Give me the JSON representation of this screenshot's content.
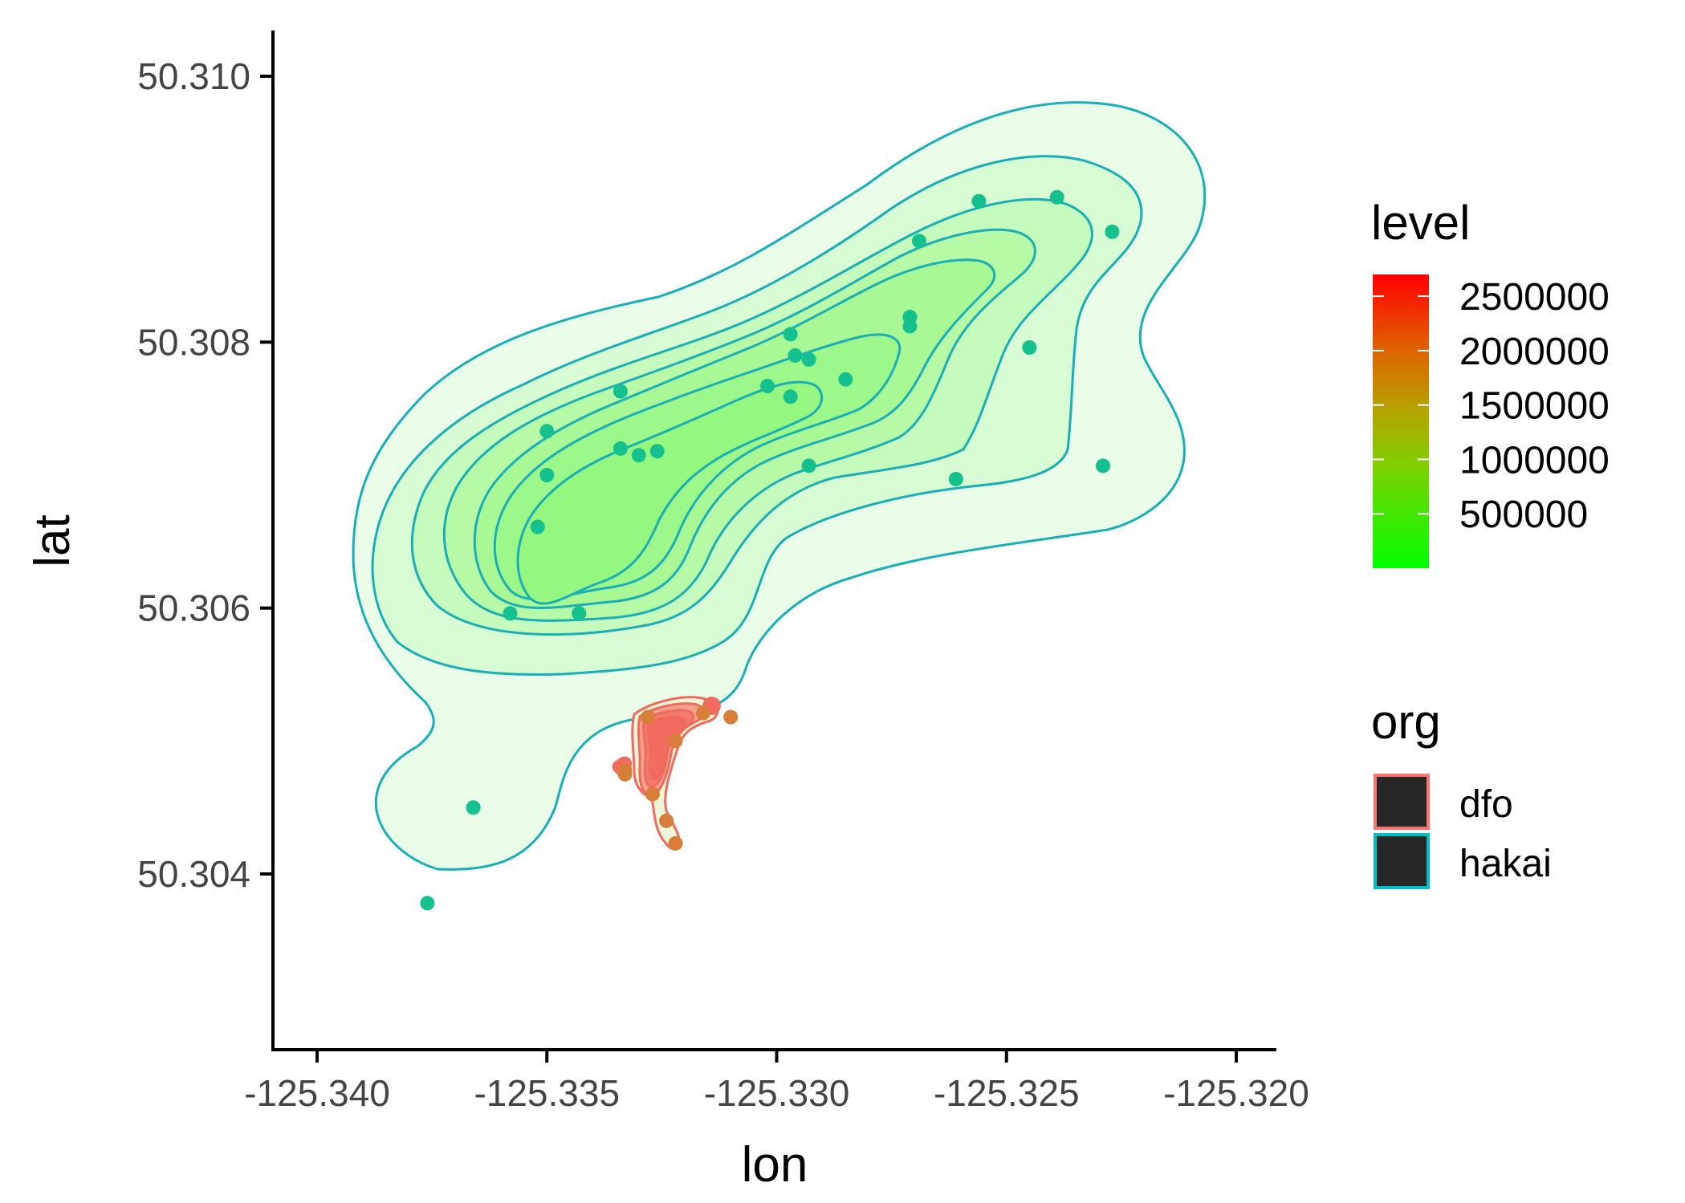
{
  "chart_data": {
    "type": "scatter",
    "subtype": "2d-density-contour",
    "title": "",
    "xlabel": "lon",
    "ylabel": "lat",
    "xlim": [
      -125.341,
      -125.3191
    ],
    "ylim": [
      50.3027,
      50.31035
    ],
    "x_ticks": [
      -125.34,
      -125.335,
      -125.33,
      -125.325,
      -125.32
    ],
    "x_tick_labels": [
      "-125.340",
      "-125.335",
      "-125.330",
      "-125.325",
      "-125.320"
    ],
    "y_ticks": [
      50.304,
      50.306,
      50.308,
      50.31
    ],
    "y_tick_labels": [
      "50.304",
      "50.306",
      "50.308",
      "50.310"
    ],
    "grid": false,
    "legend_position": "right",
    "fill_scale": {
      "title": "level",
      "low_color": "#00ff00",
      "high_color": "#ff0000",
      "breaks": [
        2500000,
        2000000,
        1500000,
        1000000,
        500000
      ],
      "break_labels": [
        "2500000",
        "2000000",
        "1500000",
        "1000000",
        "500000"
      ],
      "range": [
        0,
        2700000
      ]
    },
    "color_legend": {
      "title": "org",
      "entries": [
        {
          "label": "dfo",
          "color": "#F8766D"
        },
        {
          "label": "hakai",
          "color": "#00BFC4"
        }
      ]
    },
    "series": [
      {
        "name": "hakai",
        "line_color": "#19AFB5",
        "point_color": "#14C08E",
        "contour_fill_colors": [
          "#e9fde9",
          "#d8fcd4",
          "#c6fbbe",
          "#b6faa8",
          "#a8f996",
          "#9cf88a",
          "#94f780"
        ],
        "points": [
          [
            -125.3376,
            50.30378
          ],
          [
            -125.3366,
            50.3045
          ],
          [
            -125.3358,
            50.30596
          ],
          [
            -125.3343,
            50.30596
          ],
          [
            -125.3352,
            50.30661
          ],
          [
            -125.335,
            50.307
          ],
          [
            -125.335,
            50.30733
          ],
          [
            -125.3334,
            50.3072
          ],
          [
            -125.3334,
            50.30763
          ],
          [
            -125.333,
            50.30715
          ],
          [
            -125.3326,
            50.30718
          ],
          [
            -125.3302,
            50.30767
          ],
          [
            -125.3297,
            50.30759
          ],
          [
            -125.3297,
            50.30806
          ],
          [
            -125.3296,
            50.3079
          ],
          [
            -125.3293,
            50.30787
          ],
          [
            -125.3293,
            50.30707
          ],
          [
            -125.3285,
            50.30772
          ],
          [
            -125.3271,
            50.30819
          ],
          [
            -125.3271,
            50.30812
          ],
          [
            -125.3269,
            50.30876
          ],
          [
            -125.3256,
            50.30906
          ],
          [
            -125.3261,
            50.30697
          ],
          [
            -125.3245,
            50.30796
          ],
          [
            -125.3239,
            50.30909
          ],
          [
            -125.3229,
            50.30707
          ],
          [
            -125.3227,
            50.30883
          ]
        ]
      },
      {
        "name": "dfo",
        "line_color": "#EE6B5F",
        "point_color": "#D77F3A",
        "contour_fill_colors": [
          "#eef6d8",
          "#f4a08f",
          "#f47a6c",
          "#f26a60"
        ],
        "points": [
          [
            -125.3328,
            50.30518
          ],
          [
            -125.3316,
            50.30521
          ],
          [
            -125.331,
            50.30518
          ],
          [
            -125.3322,
            50.305
          ],
          [
            -125.3333,
            50.30478
          ],
          [
            -125.3333,
            50.30475
          ],
          [
            -125.3327,
            50.3046
          ],
          [
            -125.3324,
            50.3044
          ],
          [
            -125.3322,
            50.30423
          ]
        ]
      }
    ]
  }
}
